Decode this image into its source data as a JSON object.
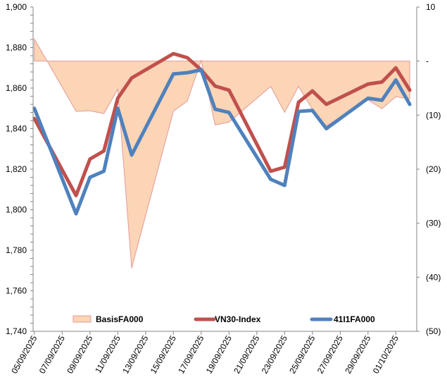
{
  "chart_data": {
    "type": "line",
    "title": "",
    "x": [
      "05/09/2025",
      "08/09/2025",
      "09/09/2025",
      "10/09/2025",
      "11/09/2025",
      "12/09/2025",
      "15/09/2025",
      "16/09/2025",
      "17/09/2025",
      "18/09/2025",
      "19/09/2025",
      "22/09/2025",
      "23/09/2025",
      "24/09/2025",
      "25/09/2025",
      "26/09/2025",
      "29/09/2025",
      "30/09/2025",
      "01/10/2025",
      "02/10/2025"
    ],
    "x_tick_labels": [
      "05/09/2025",
      "07/09/2025",
      "09/09/2025",
      "11/09/2025",
      "13/09/2025",
      "15/09/2025",
      "17/09/2025",
      "19/09/2025",
      "21/09/2025",
      "23/09/2025",
      "25/09/2025",
      "27/09/2025",
      "29/09/2025",
      "01/10/2025"
    ],
    "y_left": {
      "range": [
        1740,
        1900
      ],
      "tick_labels": [
        "1,740",
        "1,760",
        "1,780",
        "1,800",
        "1,820",
        "1,840",
        "1,860",
        "1,880",
        "1,900"
      ]
    },
    "y_right": {
      "range": [
        -50,
        10
      ],
      "tick_labels": [
        "(50)",
        "(40)",
        "(30)",
        "(20)",
        "(10)",
        "-",
        "10"
      ]
    },
    "series": [
      {
        "name": "BasisFA000",
        "type": "area",
        "axis": "right",
        "color": "#FBD5B5",
        "stroke": "#E39A9A",
        "values": [
          4.1,
          -9.3,
          -9.2,
          -9.7,
          -5.2,
          -38.3,
          -9.3,
          -7.4,
          0.1,
          -11.8,
          -11.3,
          -4.7,
          -9.5,
          -4.7,
          -8.9,
          -12.0,
          -7.2,
          -8.8,
          -6.6,
          -7.0
        ]
      },
      {
        "name": "VN30-Index",
        "type": "line",
        "axis": "left",
        "color": "#C0504D",
        "values": [
          1845,
          1807,
          1825,
          1829,
          1855,
          1865,
          1877,
          1875,
          1869,
          1861,
          1859,
          1819,
          1821,
          1853,
          1858.6,
          1852,
          1862,
          1863,
          1870,
          1859
        ]
      },
      {
        "name": "41I1FA000",
        "type": "line",
        "axis": "left",
        "color": "#4F81BD",
        "values": [
          1850,
          1798,
          1816,
          1819,
          1850,
          1827,
          1867,
          1867.6,
          1869,
          1849.6,
          1848,
          1815,
          1812,
          1848.5,
          1849,
          1840,
          1855,
          1854,
          1864,
          1852
        ]
      }
    ],
    "legend": {
      "placement": "bottom-inside"
    },
    "grid": false
  }
}
